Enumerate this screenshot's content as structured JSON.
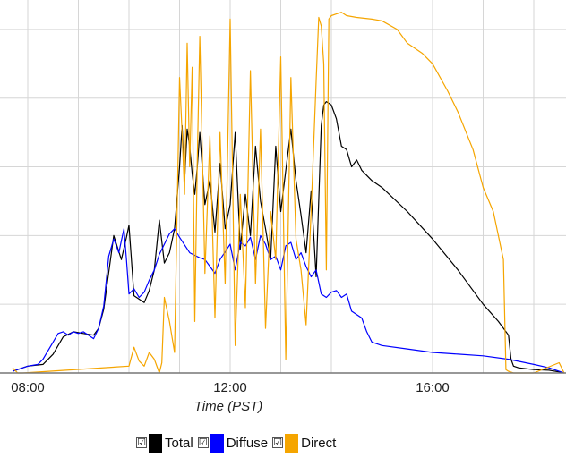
{
  "chart_data": {
    "type": "line",
    "title": "",
    "xlabel": "Time (PST)",
    "ylabel": "",
    "x_ticks": [
      "08:00",
      "12:00",
      "16:00"
    ],
    "x_tick_hours": [
      8,
      12,
      16
    ],
    "xlim": [
      7.7,
      18.9
    ],
    "ylim": [
      0,
      1000
    ],
    "y_gridlines": [
      200,
      400,
      600,
      800,
      1000
    ],
    "grid": true,
    "legend_position": "bottom",
    "series": [
      {
        "name": "Total",
        "color": "#000000",
        "x": [
          7.7,
          8.0,
          8.3,
          8.5,
          8.7,
          8.9,
          9.1,
          9.3,
          9.4,
          9.5,
          9.7,
          9.85,
          9.95,
          10.0,
          10.1,
          10.3,
          10.4,
          10.5,
          10.6,
          10.7,
          10.8,
          10.9,
          11.0,
          11.05,
          11.1,
          11.15,
          11.2,
          11.25,
          11.3,
          11.35,
          11.4,
          11.5,
          11.6,
          11.7,
          11.8,
          11.9,
          12.0,
          12.1,
          12.2,
          12.3,
          12.4,
          12.5,
          12.6,
          12.7,
          12.8,
          12.9,
          13.0,
          13.1,
          13.2,
          13.3,
          13.4,
          13.5,
          13.6,
          13.7,
          13.8,
          13.85,
          13.9,
          14.0,
          14.1,
          14.2,
          14.3,
          14.4,
          14.5,
          14.6,
          14.8,
          15.0,
          15.5,
          16.0,
          16.5,
          17.0,
          17.3,
          17.5,
          17.55,
          17.6,
          17.7,
          18.0,
          18.3,
          18.5,
          18.6
        ],
        "y": [
          5,
          20,
          25,
          55,
          105,
          120,
          115,
          110,
          130,
          185,
          400,
          330,
          395,
          430,
          225,
          205,
          240,
          300,
          445,
          320,
          350,
          420,
          600,
          720,
          560,
          710,
          660,
          580,
          520,
          600,
          700,
          490,
          560,
          410,
          610,
          420,
          490,
          700,
          360,
          520,
          400,
          660,
          500,
          420,
          330,
          660,
          470,
          590,
          710,
          560,
          460,
          350,
          530,
          280,
          720,
          780,
          790,
          780,
          740,
          660,
          650,
          600,
          620,
          590,
          560,
          540,
          470,
          390,
          300,
          200,
          150,
          110,
          40,
          20,
          15,
          10,
          8,
          3,
          0
        ]
      },
      {
        "name": "Diffuse",
        "color": "#0000ff",
        "x": [
          7.7,
          8.0,
          8.2,
          8.3,
          8.5,
          8.6,
          8.7,
          8.8,
          8.9,
          9.0,
          9.1,
          9.2,
          9.3,
          9.4,
          9.5,
          9.6,
          9.7,
          9.8,
          9.85,
          9.9,
          9.95,
          10.0,
          10.1,
          10.2,
          10.3,
          10.4,
          10.5,
          10.6,
          10.8,
          10.9,
          11.0,
          11.2,
          11.4,
          11.5,
          11.6,
          11.7,
          11.8,
          12.0,
          12.1,
          12.2,
          12.3,
          12.4,
          12.5,
          12.6,
          12.7,
          12.8,
          12.9,
          13.0,
          13.1,
          13.2,
          13.3,
          13.4,
          13.5,
          13.6,
          13.7,
          13.8,
          13.9,
          14.0,
          14.1,
          14.2,
          14.3,
          14.4,
          14.5,
          14.6,
          14.7,
          14.8,
          15.0,
          15.5,
          16.0,
          16.5,
          17.0,
          17.5,
          18.0,
          18.3,
          18.5,
          18.6
        ],
        "y": [
          5,
          20,
          25,
          40,
          90,
          115,
          120,
          110,
          120,
          115,
          120,
          110,
          100,
          130,
          195,
          340,
          390,
          350,
          385,
          420,
          330,
          230,
          245,
          220,
          235,
          270,
          300,
          345,
          405,
          420,
          395,
          350,
          335,
          330,
          310,
          290,
          330,
          375,
          300,
          380,
          370,
          395,
          330,
          400,
          375,
          330,
          340,
          300,
          370,
          380,
          330,
          350,
          310,
          280,
          300,
          230,
          220,
          235,
          240,
          220,
          230,
          180,
          170,
          160,
          120,
          90,
          80,
          70,
          60,
          55,
          50,
          40,
          25,
          15,
          5,
          0
        ]
      },
      {
        "name": "Direct",
        "color": "#f5a500",
        "x": [
          7.7,
          7.8,
          7.9,
          10.0,
          10.1,
          10.2,
          10.3,
          10.4,
          10.5,
          10.6,
          10.65,
          10.7,
          10.8,
          10.9,
          11.0,
          11.05,
          11.1,
          11.15,
          11.2,
          11.25,
          11.3,
          11.35,
          11.4,
          11.5,
          11.6,
          11.7,
          11.8,
          11.9,
          12.0,
          12.1,
          12.2,
          12.3,
          12.4,
          12.5,
          12.6,
          12.7,
          12.8,
          12.9,
          13.0,
          13.1,
          13.2,
          13.3,
          13.4,
          13.5,
          13.6,
          13.7,
          13.75,
          13.8,
          13.85,
          13.9,
          13.95,
          14.0,
          14.1,
          14.2,
          14.3,
          14.5,
          14.8,
          15.0,
          15.3,
          15.5,
          15.8,
          16.0,
          16.3,
          16.5,
          16.8,
          17.0,
          17.2,
          17.4,
          17.45,
          17.5,
          17.6,
          18.0,
          18.5,
          18.6
        ],
        "y": [
          15,
          0,
          0,
          20,
          75,
          35,
          20,
          60,
          40,
          0,
          30,
          220,
          150,
          60,
          860,
          700,
          520,
          960,
          600,
          890,
          150,
          620,
          980,
          290,
          690,
          160,
          700,
          260,
          1030,
          80,
          520,
          190,
          880,
          260,
          710,
          130,
          470,
          330,
          920,
          40,
          860,
          390,
          300,
          140,
          470,
          850,
          1035,
          1010,
          900,
          300,
          1030,
          1040,
          1045,
          1050,
          1040,
          1035,
          1030,
          1025,
          1000,
          960,
          930,
          900,
          820,
          760,
          650,
          540,
          470,
          330,
          10,
          5,
          0,
          0,
          30,
          0
        ]
      }
    ]
  },
  "legend": {
    "items": [
      {
        "label": "Total",
        "checked": true,
        "check_glyph": "☑",
        "color": "#000000"
      },
      {
        "label": "Diffuse",
        "checked": true,
        "check_glyph": "☑",
        "color": "#0000ff"
      },
      {
        "label": "Direct",
        "checked": true,
        "check_glyph": "☑",
        "color": "#f5a500"
      }
    ]
  }
}
